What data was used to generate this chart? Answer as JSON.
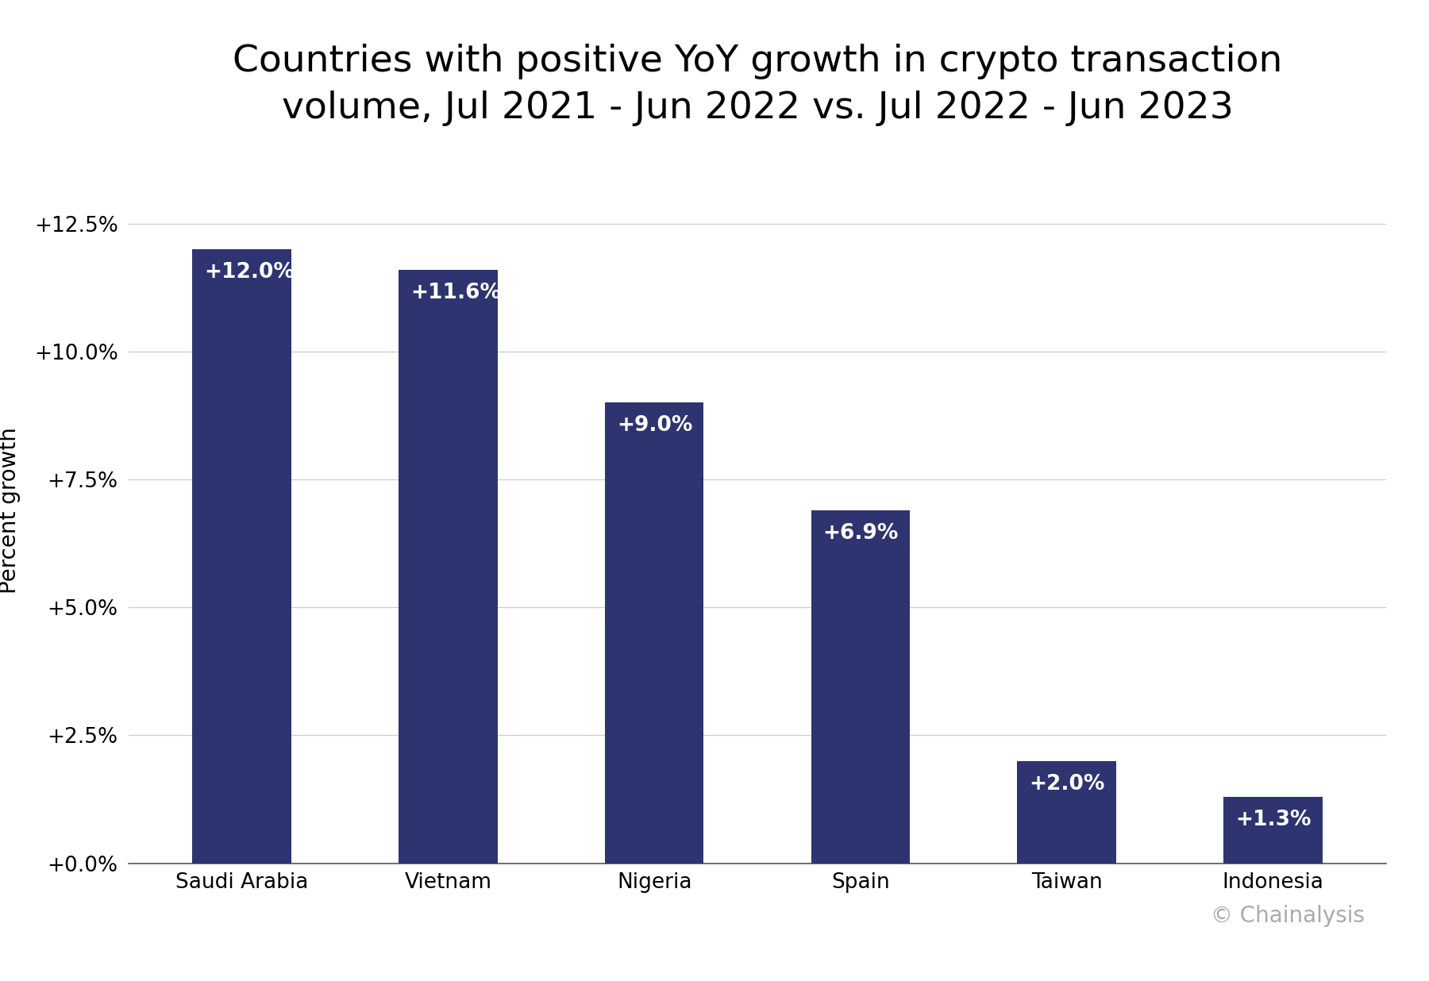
{
  "title": "Countries with positive YoY growth in crypto transaction\nvolume, Jul 2021 - Jun 2022 vs. Jul 2022 - Jun 2023",
  "categories": [
    "Saudi Arabia",
    "Vietnam",
    "Nigeria",
    "Spain",
    "Taiwan",
    "Indonesia"
  ],
  "values": [
    12.0,
    11.6,
    9.0,
    6.9,
    2.0,
    1.3
  ],
  "labels": [
    "+12.0%",
    "+11.6%",
    "+9.0%",
    "+6.9%",
    "+2.0%",
    "+1.3%"
  ],
  "bar_color": "#2e3470",
  "ylabel": "Percent growth",
  "ylim": [
    0,
    13.8
  ],
  "yticks": [
    0.0,
    2.5,
    5.0,
    7.5,
    10.0,
    12.5
  ],
  "ytick_labels": [
    "+0.0%",
    "+2.5%",
    "+5.0%",
    "+7.5%",
    "+10.0%",
    "+12.5%"
  ],
  "background_color": "#ffffff",
  "title_fontsize": 34,
  "label_fontsize": 19,
  "tick_fontsize": 19,
  "ylabel_fontsize": 20,
  "watermark": "© Chainalysis",
  "watermark_fontsize": 20,
  "watermark_color": "#aaaaaa",
  "bar_width": 0.48
}
